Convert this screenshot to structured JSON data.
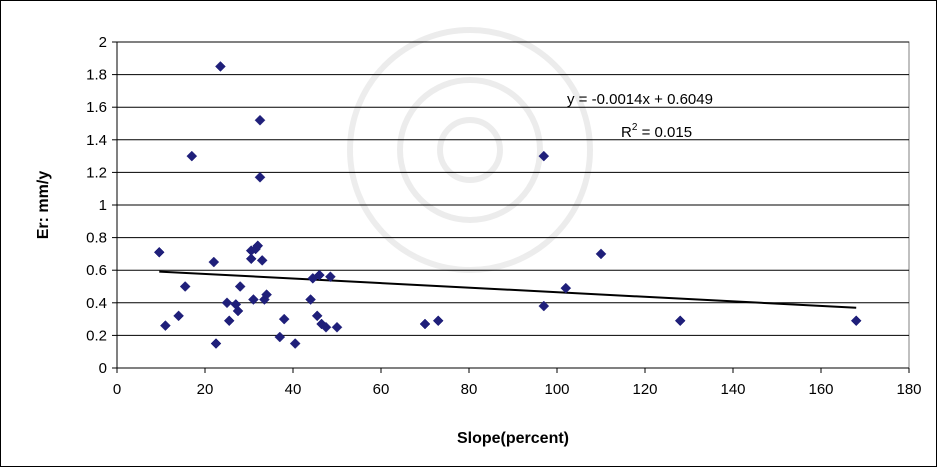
{
  "chart_data": {
    "type": "scatter",
    "title": "",
    "xlabel": "Slope(percent)",
    "ylabel": "Er: mm/y",
    "xlim": [
      0,
      180
    ],
    "ylim": [
      0,
      2
    ],
    "x_ticks": [
      "0",
      "20",
      "40",
      "60",
      "80",
      "100",
      "120",
      "140",
      "160",
      "180"
    ],
    "y_ticks": [
      "0",
      "0.2",
      "0.4",
      "0.6",
      "0.8",
      "1",
      "1.2",
      "1.4",
      "1.6",
      "1.8",
      "2"
    ],
    "grid": "horizontal",
    "legend": "none",
    "marker_color": "#1f1f7a",
    "trendline": {
      "slope": -0.0014,
      "intercept": 0.6049,
      "x_range": [
        9.6,
        168
      ],
      "color": "#000000"
    },
    "annotations": {
      "equation": "y = -0.0014x + 0.6049",
      "r2_prefix": "R",
      "r2_sup": "2",
      "r2_value": " = 0.015"
    },
    "points": [
      {
        "x": 9.6,
        "y": 0.71
      },
      {
        "x": 11,
        "y": 0.26
      },
      {
        "x": 14,
        "y": 0.32
      },
      {
        "x": 15.5,
        "y": 0.5
      },
      {
        "x": 17,
        "y": 1.3
      },
      {
        "x": 22,
        "y": 0.65
      },
      {
        "x": 22.5,
        "y": 0.15
      },
      {
        "x": 23.5,
        "y": 1.85
      },
      {
        "x": 25,
        "y": 0.4
      },
      {
        "x": 25.5,
        "y": 0.29
      },
      {
        "x": 27,
        "y": 0.39
      },
      {
        "x": 27.5,
        "y": 0.35
      },
      {
        "x": 28,
        "y": 0.5
      },
      {
        "x": 30.5,
        "y": 0.72
      },
      {
        "x": 30.5,
        "y": 0.67
      },
      {
        "x": 31,
        "y": 0.42
      },
      {
        "x": 31.5,
        "y": 0.73
      },
      {
        "x": 32,
        "y": 0.75
      },
      {
        "x": 32.5,
        "y": 1.52
      },
      {
        "x": 32.5,
        "y": 1.17
      },
      {
        "x": 33,
        "y": 0.66
      },
      {
        "x": 33.5,
        "y": 0.42
      },
      {
        "x": 34,
        "y": 0.45
      },
      {
        "x": 37,
        "y": 0.19
      },
      {
        "x": 38,
        "y": 0.3
      },
      {
        "x": 40.5,
        "y": 0.15
      },
      {
        "x": 44,
        "y": 0.42
      },
      {
        "x": 44.5,
        "y": 0.55
      },
      {
        "x": 45.5,
        "y": 0.32
      },
      {
        "x": 46,
        "y": 0.57
      },
      {
        "x": 46.5,
        "y": 0.27
      },
      {
        "x": 47.5,
        "y": 0.25
      },
      {
        "x": 48.5,
        "y": 0.56
      },
      {
        "x": 50,
        "y": 0.25
      },
      {
        "x": 70,
        "y": 0.27
      },
      {
        "x": 73,
        "y": 0.29
      },
      {
        "x": 97,
        "y": 1.3
      },
      {
        "x": 97,
        "y": 0.38
      },
      {
        "x": 102,
        "y": 0.49
      },
      {
        "x": 110,
        "y": 0.7
      },
      {
        "x": 128,
        "y": 0.29
      },
      {
        "x": 168,
        "y": 0.29
      }
    ]
  }
}
